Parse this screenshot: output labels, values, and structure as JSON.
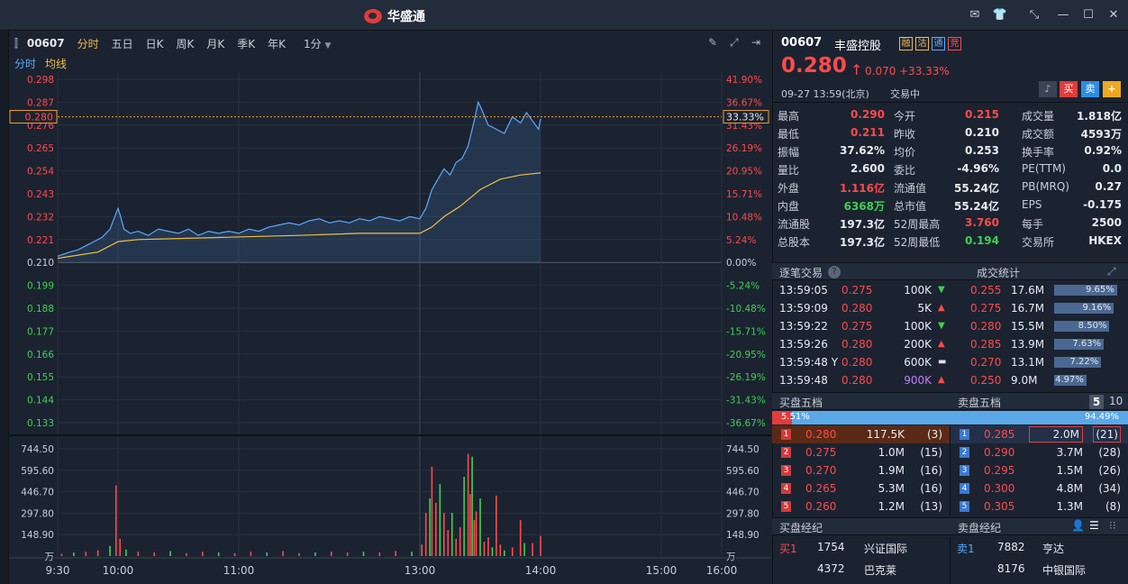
{
  "app": {
    "brand": "华盛通"
  },
  "toolbar": {
    "code": "00607",
    "tabs": [
      "分时",
      "五日",
      "日K",
      "周K",
      "月K",
      "季K",
      "年K"
    ],
    "interval": "1分"
  },
  "legend": {
    "fenshi": "分时",
    "junxian": "均线"
  },
  "colors": {
    "up": "#ff4a4a",
    "down": "#3fd04f",
    "price_line": "#5aa8ff",
    "avg_line": "#f0c040",
    "grid": "#2d3747",
    "bg": "#1b2331"
  },
  "quote": {
    "code": "00607",
    "name": "丰盛控股",
    "badges": [
      "融",
      "沽",
      "通",
      "竞"
    ],
    "price": "0.280",
    "change": "0.070",
    "change_pct": "+33.33%",
    "datetime": "09-27  13:59(北京)",
    "status": "交易中",
    "buy": "买",
    "sell": "卖",
    "add": "+"
  },
  "stats": [
    [
      {
        "k": "最高",
        "v": "0.290",
        "c": "up"
      },
      {
        "k": "今开",
        "v": "0.215",
        "c": "up"
      },
      {
        "k": "成交量",
        "v": "1.818亿",
        "c": "wh"
      }
    ],
    [
      {
        "k": "最低",
        "v": "0.211",
        "c": "up"
      },
      {
        "k": "昨收",
        "v": "0.210",
        "c": "wh"
      },
      {
        "k": "成交额",
        "v": "4593万",
        "c": "wh"
      }
    ],
    [
      {
        "k": "振幅",
        "v": "37.62%",
        "c": "wh"
      },
      {
        "k": "均价",
        "v": "0.253",
        "c": "wh"
      },
      {
        "k": "换手率",
        "v": "0.92%",
        "c": "wh"
      }
    ],
    [
      {
        "k": "量比",
        "v": "2.600",
        "c": "wh"
      },
      {
        "k": "委比",
        "v": "-4.96%",
        "c": "wh"
      },
      {
        "k": "PE(TTM)",
        "v": "0.0",
        "c": "wh"
      }
    ],
    [
      {
        "k": "外盘",
        "v": "1.116亿",
        "c": "up"
      },
      {
        "k": "流通值",
        "v": "55.24亿",
        "c": "wh"
      },
      {
        "k": "PB(MRQ)",
        "v": "0.27",
        "c": "wh"
      }
    ],
    [
      {
        "k": "内盘",
        "v": "6368万",
        "c": "dn"
      },
      {
        "k": "总市值",
        "v": "55.24亿",
        "c": "wh"
      },
      {
        "k": "EPS",
        "v": "-0.175",
        "c": "wh"
      }
    ],
    [
      {
        "k": "流通股",
        "v": "197.3亿",
        "c": "wh"
      },
      {
        "k": "52周最高",
        "v": "3.760",
        "c": "up"
      },
      {
        "k": "每手",
        "v": "2500",
        "c": "wh"
      }
    ],
    [
      {
        "k": "总股本",
        "v": "197.3亿",
        "c": "wh"
      },
      {
        "k": "52周最低",
        "v": "0.194",
        "c": "dn"
      },
      {
        "k": "交易所",
        "v": "HKEX",
        "c": "wh"
      }
    ]
  ],
  "ticks": {
    "title": "逐笔交易",
    "help": "?",
    "rows": [
      {
        "t": "13:59:05",
        "p": "0.275",
        "pc": "up",
        "v": "100K",
        "vc": "wh",
        "d": "down"
      },
      {
        "t": "13:59:09",
        "p": "0.280",
        "pc": "up",
        "v": "5K",
        "vc": "wh",
        "d": "up"
      },
      {
        "t": "13:59:22",
        "p": "0.275",
        "pc": "up",
        "v": "100K",
        "vc": "wh",
        "d": "down"
      },
      {
        "t": "13:59:26",
        "p": "0.280",
        "pc": "up",
        "v": "200K",
        "vc": "wh",
        "d": "up"
      },
      {
        "t": "13:59:48 Y",
        "p": "0.280",
        "pc": "up",
        "v": "600K",
        "vc": "wh",
        "d": "flat"
      },
      {
        "t": "13:59:48",
        "p": "0.280",
        "pc": "up",
        "v": "900K",
        "vc": "pu",
        "d": "up"
      }
    ]
  },
  "volstat": {
    "title": "成交统计",
    "rows": [
      {
        "p": "0.255",
        "v": "17.6M",
        "pct": "9.65%",
        "f": 0.9965
      },
      {
        "p": "0.275",
        "v": "16.7M",
        "pct": "9.16%",
        "f": 0.946
      },
      {
        "p": "0.280",
        "v": "15.5M",
        "pct": "8.50%",
        "f": 0.878
      },
      {
        "p": "0.285",
        "v": "13.9M",
        "pct": "7.63%",
        "f": 0.788
      },
      {
        "p": "0.270",
        "v": "13.1M",
        "pct": "7.22%",
        "f": 0.746
      },
      {
        "p": "0.250",
        "v": "9.0M",
        "pct": "4.97%",
        "f": 0.513
      }
    ]
  },
  "orderbook": {
    "bid_title": "买盘五档",
    "ask_title": "卖盘五档",
    "levels_5": "5",
    "levels_10": "10",
    "bid_pct": "5.51%",
    "ask_pct": "94.49%",
    "bid_frac": 0.0551,
    "bids": [
      {
        "n": "1",
        "p": "0.280",
        "v": "117.5K",
        "c": "(3)"
      },
      {
        "n": "2",
        "p": "0.275",
        "v": "1.0M",
        "c": "(15)"
      },
      {
        "n": "3",
        "p": "0.270",
        "v": "1.9M",
        "c": "(16)"
      },
      {
        "n": "4",
        "p": "0.265",
        "v": "5.3M",
        "c": "(16)"
      },
      {
        "n": "5",
        "p": "0.260",
        "v": "1.2M",
        "c": "(13)"
      }
    ],
    "asks": [
      {
        "n": "1",
        "p": "0.285",
        "v": "2.0M",
        "c": "(21)"
      },
      {
        "n": "2",
        "p": "0.290",
        "v": "3.7M",
        "c": "(28)"
      },
      {
        "n": "3",
        "p": "0.295",
        "v": "1.5M",
        "c": "(26)"
      },
      {
        "n": "4",
        "p": "0.300",
        "v": "4.8M",
        "c": "(34)"
      },
      {
        "n": "5",
        "p": "0.305",
        "v": "1.3M",
        "c": "(8)"
      }
    ]
  },
  "brokers": {
    "bid_title": "买盘经纪",
    "ask_title": "卖盘经纪",
    "bid_label": "买1",
    "ask_label": "卖1",
    "bids": [
      {
        "id": "1754",
        "name": "兴证国际"
      },
      {
        "id": "4372",
        "name": "巴克莱"
      }
    ],
    "asks": [
      {
        "id": "7882",
        "name": "亨达"
      },
      {
        "id": "8176",
        "name": "中银国际"
      }
    ]
  },
  "chart_data": {
    "type": "line",
    "prev_close": 0.21,
    "current_price": "0.280",
    "current_pct": "33.33%",
    "price_ticks": [
      "0.298",
      "0.287",
      "0.276",
      "0.265",
      "0.254",
      "0.243",
      "0.232",
      "0.221",
      "0.210",
      "0.199",
      "0.188",
      "0.177",
      "0.166",
      "0.155",
      "0.144",
      "0.133"
    ],
    "pct_ticks": [
      "41.90%",
      "36.67%",
      "31.43%",
      "26.19%",
      "20.95%",
      "15.71%",
      "10.48%",
      "5.24%",
      "0.00%",
      "-5.24%",
      "-10.48%",
      "-15.71%",
      "-20.95%",
      "-26.19%",
      "-31.43%",
      "-36.67%"
    ],
    "time_labels": [
      "9:30",
      "10:00",
      "11:00",
      "13:00",
      "14:00",
      "15:00",
      "16:00"
    ],
    "vol_ticks": [
      "744.50",
      "595.60",
      "446.70",
      "297.80",
      "148.90",
      "万"
    ],
    "price_series": [
      [
        0,
        0.213
      ],
      [
        3,
        0.214
      ],
      [
        6,
        0.215
      ],
      [
        10,
        0.216
      ],
      [
        14,
        0.218
      ],
      [
        18,
        0.22
      ],
      [
        22,
        0.222
      ],
      [
        26,
        0.226
      ],
      [
        28,
        0.231
      ],
      [
        30,
        0.236
      ],
      [
        31,
        0.233
      ],
      [
        33,
        0.226
      ],
      [
        36,
        0.224
      ],
      [
        40,
        0.225
      ],
      [
        45,
        0.223
      ],
      [
        50,
        0.226
      ],
      [
        55,
        0.225
      ],
      [
        60,
        0.224
      ],
      [
        65,
        0.226
      ],
      [
        70,
        0.223
      ],
      [
        75,
        0.225
      ],
      [
        80,
        0.224
      ],
      [
        85,
        0.225
      ],
      [
        90,
        0.224
      ],
      [
        95,
        0.226
      ],
      [
        100,
        0.225
      ],
      [
        105,
        0.227
      ],
      [
        110,
        0.228
      ],
      [
        115,
        0.229
      ],
      [
        120,
        0.228
      ],
      [
        125,
        0.23
      ],
      [
        130,
        0.231
      ],
      [
        135,
        0.229
      ],
      [
        140,
        0.23
      ],
      [
        145,
        0.229
      ],
      [
        150,
        0.231
      ],
      [
        155,
        0.23
      ],
      [
        160,
        0.232
      ],
      [
        165,
        0.231
      ],
      [
        170,
        0.23
      ],
      [
        175,
        0.232
      ],
      [
        180,
        0.231
      ],
      [
        183,
        0.236
      ],
      [
        186,
        0.245
      ],
      [
        189,
        0.25
      ],
      [
        192,
        0.255
      ],
      [
        195,
        0.252
      ],
      [
        198,
        0.258
      ],
      [
        201,
        0.26
      ],
      [
        204,
        0.266
      ],
      [
        207,
        0.278
      ],
      [
        209,
        0.287
      ],
      [
        211,
        0.283
      ],
      [
        214,
        0.276
      ],
      [
        218,
        0.274
      ],
      [
        222,
        0.272
      ],
      [
        226,
        0.28
      ],
      [
        230,
        0.277
      ],
      [
        233,
        0.282
      ],
      [
        236,
        0.278
      ],
      [
        239,
        0.274
      ],
      [
        240,
        0.279
      ]
    ],
    "avg_series": [
      [
        0,
        0.212
      ],
      [
        20,
        0.215
      ],
      [
        30,
        0.22
      ],
      [
        40,
        0.221
      ],
      [
        80,
        0.222
      ],
      [
        120,
        0.223
      ],
      [
        150,
        0.224
      ],
      [
        180,
        0.224
      ],
      [
        186,
        0.227
      ],
      [
        192,
        0.232
      ],
      [
        200,
        0.237
      ],
      [
        210,
        0.245
      ],
      [
        220,
        0.25
      ],
      [
        230,
        0.252
      ],
      [
        240,
        0.253
      ]
    ],
    "volumes": [
      [
        2,
        15
      ],
      [
        8,
        25
      ],
      [
        14,
        30
      ],
      [
        20,
        40
      ],
      [
        26,
        70
      ],
      [
        29,
        490
      ],
      [
        31,
        120
      ],
      [
        34,
        45
      ],
      [
        40,
        30
      ],
      [
        48,
        25
      ],
      [
        56,
        35
      ],
      [
        64,
        20
      ],
      [
        72,
        30
      ],
      [
        80,
        25
      ],
      [
        88,
        20
      ],
      [
        96,
        30
      ],
      [
        104,
        25
      ],
      [
        112,
        35
      ],
      [
        120,
        20
      ],
      [
        128,
        25
      ],
      [
        136,
        30
      ],
      [
        144,
        25
      ],
      [
        152,
        30
      ],
      [
        160,
        25
      ],
      [
        168,
        35
      ],
      [
        176,
        30
      ],
      [
        181,
        80
      ],
      [
        183,
        300
      ],
      [
        185,
        400
      ],
      [
        186,
        620
      ],
      [
        188,
        370
      ],
      [
        190,
        500
      ],
      [
        192,
        300
      ],
      [
        194,
        180
      ],
      [
        196,
        300
      ],
      [
        198,
        120
      ],
      [
        200,
        200
      ],
      [
        202,
        550
      ],
      [
        204,
        710
      ],
      [
        205,
        430
      ],
      [
        206,
        690
      ],
      [
        207,
        250
      ],
      [
        208,
        310
      ],
      [
        210,
        400
      ],
      [
        212,
        100
      ],
      [
        214,
        130
      ],
      [
        216,
        60
      ],
      [
        218,
        420
      ],
      [
        220,
        80
      ],
      [
        222,
        40
      ],
      [
        226,
        60
      ],
      [
        230,
        250
      ],
      [
        232,
        90
      ],
      [
        236,
        90
      ],
      [
        240,
        140
      ]
    ],
    "vol_max": 744.5,
    "xlim": [
      0,
      330
    ],
    "ylim": [
      0.133,
      0.298
    ]
  }
}
